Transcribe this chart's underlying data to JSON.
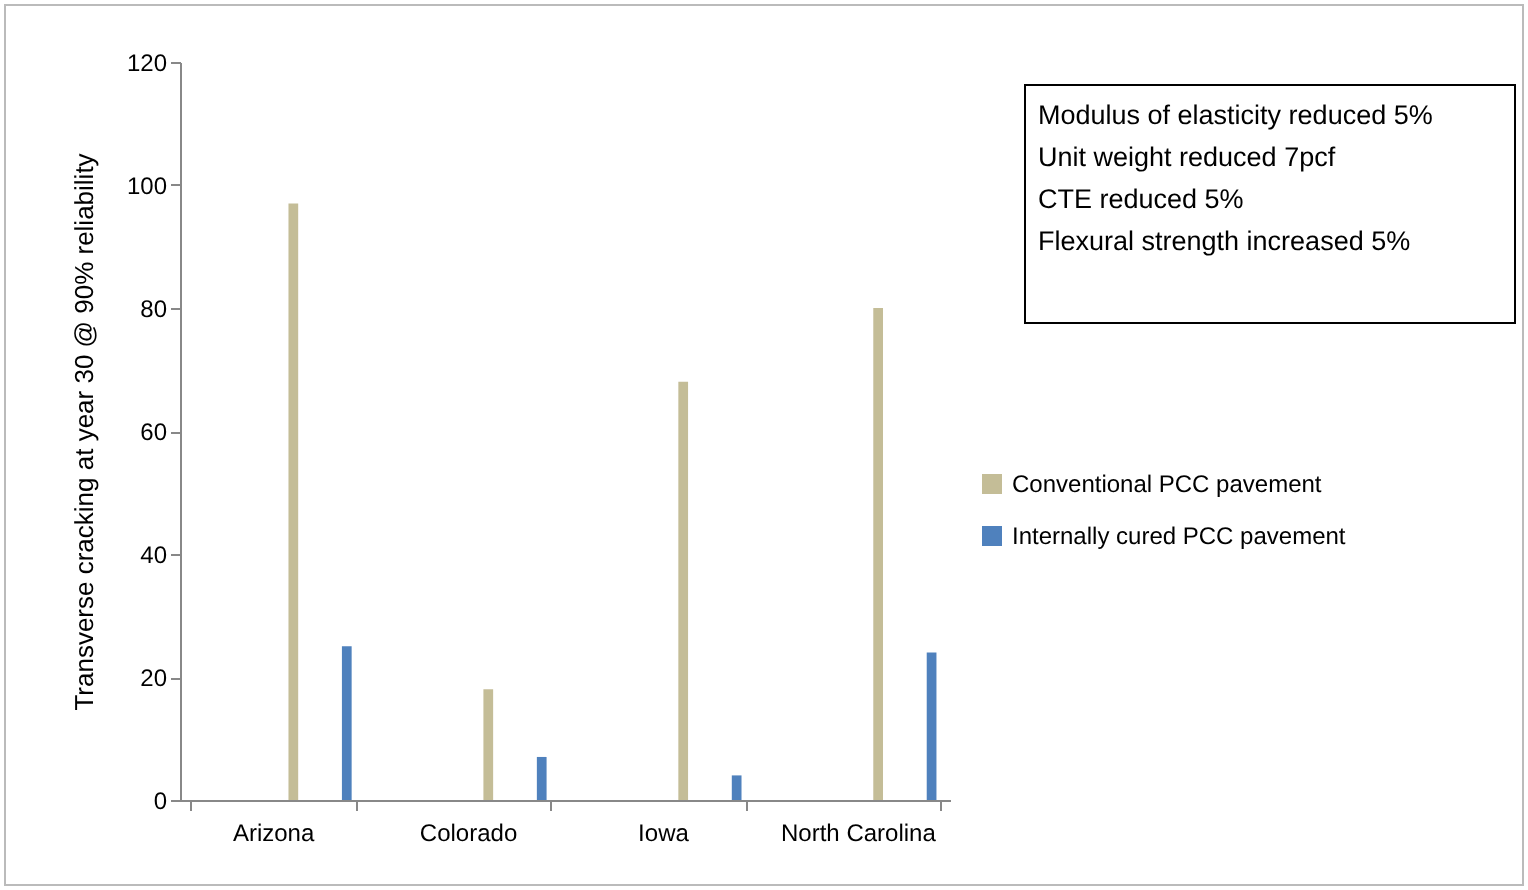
{
  "chart_data": {
    "type": "bar",
    "ylabel": "Transverse cracking at year 30 @ 90% reliability",
    "categories": [
      "Arizona",
      "Colorado",
      "Iowa",
      "North Carolina"
    ],
    "series": [
      {
        "name": "Conventional PCC pavement",
        "color": "#c4bd97",
        "values": [
          97,
          18,
          68,
          80
        ]
      },
      {
        "name": "Internally cured PCC pavement",
        "color": "#4f81bd",
        "values": [
          25,
          7,
          4,
          24
        ]
      }
    ],
    "ylim": [
      0,
      120
    ],
    "yticks": [
      0,
      20,
      40,
      60,
      80,
      100,
      120
    ],
    "grid": false,
    "legend": "right",
    "annotations": [
      "Modulus of elasticity reduced 5%",
      "Unit weight reduced 7pcf",
      "CTE reduced 5%",
      "Flexural strength increased 5%"
    ]
  }
}
